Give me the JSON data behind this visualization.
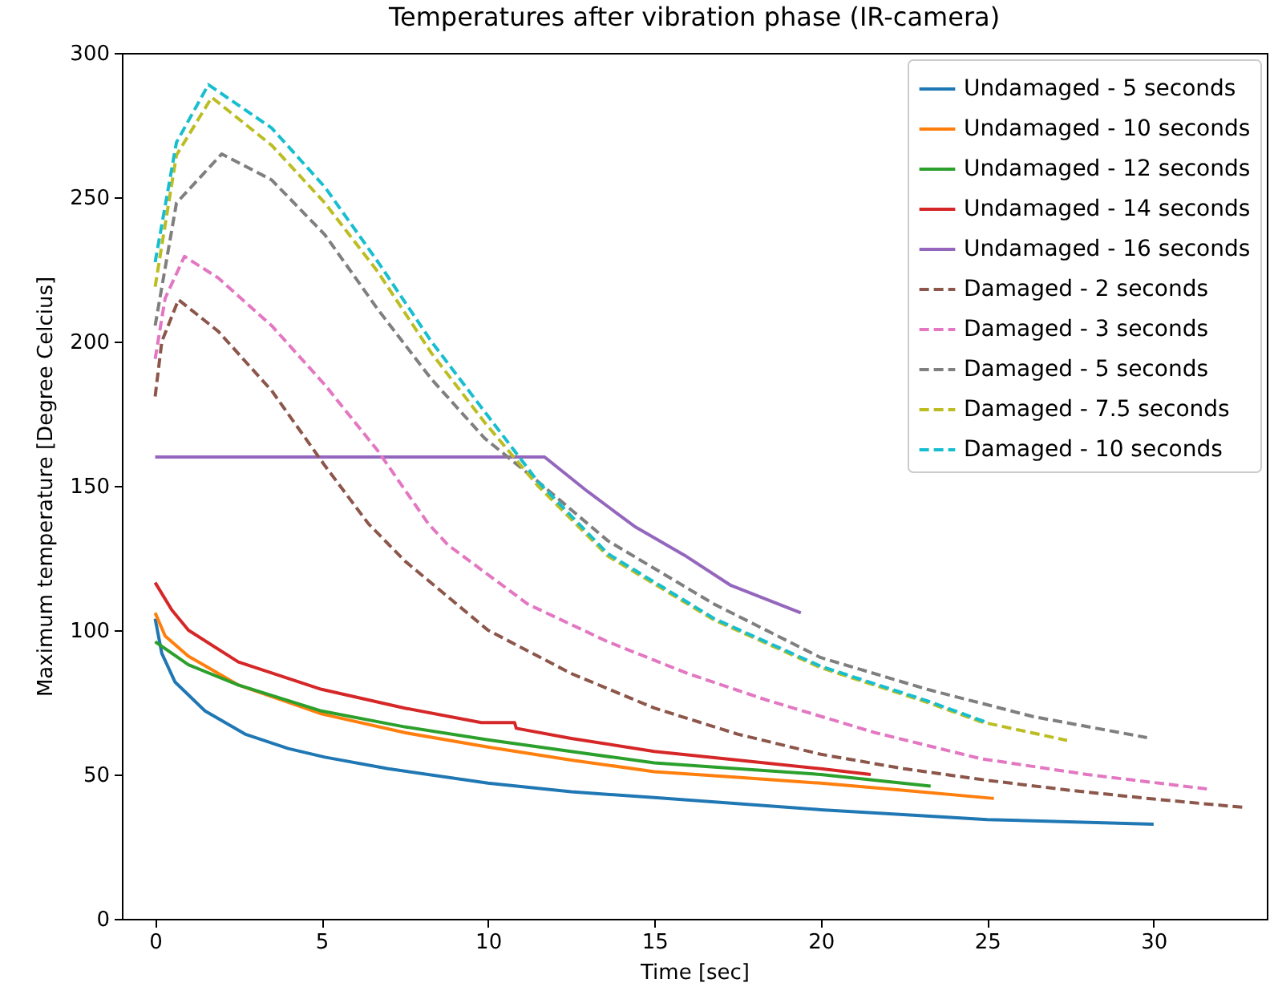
{
  "chart_data": {
    "type": "line",
    "title": "Temperatures after vibration phase (IR-camera)",
    "xlabel": "Time [sec]",
    "ylabel": "Maximum temperature [Degree Celcius]",
    "xlim": [
      -1,
      33.4
    ],
    "ylim": [
      0,
      300
    ],
    "xticks": [
      0,
      5,
      10,
      15,
      20,
      25,
      30
    ],
    "yticks": [
      0,
      50,
      100,
      150,
      200,
      250,
      300
    ],
    "grid": false,
    "legend": "top right",
    "series": [
      {
        "name": "Undamaged - 5 seconds",
        "color": "#1f77b4",
        "line_style": "solid",
        "x": [
          0,
          0.2,
          0.6,
          1.5,
          2.7,
          4,
          5.1,
          7,
          10,
          12.5,
          15,
          20,
          25,
          30
        ],
        "values": [
          104,
          92,
          82,
          72,
          64,
          59,
          56,
          52,
          47,
          44,
          42,
          37.8,
          34.4,
          32.8
        ]
      },
      {
        "name": "Undamaged - 10 seconds",
        "color": "#ff7f0e",
        "line_style": "solid",
        "x": [
          0,
          0.3,
          1,
          2.5,
          5,
          7.5,
          10,
          12.5,
          15,
          17.5,
          20,
          22.5,
          25.2
        ],
        "values": [
          106,
          98,
          91,
          81,
          71,
          64.5,
          59.5,
          55,
          51,
          49,
          47,
          44.5,
          41.7
        ]
      },
      {
        "name": "Undamaged - 12 seconds",
        "color": "#2ca02c",
        "line_style": "solid",
        "x": [
          0,
          1,
          2.5,
          5,
          7.5,
          10,
          12.5,
          15,
          17.5,
          20,
          23.3
        ],
        "values": [
          96,
          88,
          81,
          72,
          66.5,
          62,
          58,
          54,
          52,
          50,
          46
        ]
      },
      {
        "name": "Undamaged - 14 seconds",
        "color": "#d62728",
        "line_style": "solid",
        "x": [
          0,
          0.5,
          1,
          2.5,
          5,
          7.5,
          9.8,
          10.8,
          10.85,
          12.5,
          15,
          17.5,
          20,
          21.5
        ],
        "values": [
          116.5,
          107,
          100,
          89,
          79.5,
          73,
          68,
          68,
          66,
          62.5,
          58,
          55,
          52,
          50
        ]
      },
      {
        "name": "Undamaged - 16 seconds",
        "color": "#9467bd",
        "line_style": "solid",
        "x": [
          0,
          11.7,
          13,
          14.4,
          15.9,
          17.3,
          19.4
        ],
        "values": [
          160,
          160,
          148,
          136,
          126,
          115.5,
          106
        ]
      },
      {
        "name": "Damaged - 2 seconds",
        "color": "#8c564b",
        "line_style": "dashed",
        "x": [
          0,
          0.2,
          0.7,
          1.9,
          3.5,
          5.1,
          6.4,
          7.5,
          10,
          12.5,
          15,
          17.5,
          20,
          22.5,
          25,
          27.5,
          30,
          32.8
        ],
        "values": [
          181,
          200,
          214.5,
          203.5,
          183,
          157,
          137,
          124,
          100,
          85,
          73,
          64,
          57,
          52,
          48,
          44.5,
          41.5,
          38.5
        ]
      },
      {
        "name": "Damaged - 3 seconds",
        "color": "#e377c2",
        "line_style": "dashed",
        "x": [
          0,
          0.3,
          0.88,
          1.9,
          3.5,
          5.1,
          6.7,
          8.2,
          8.8,
          11.2,
          13.6,
          16,
          18.4,
          21.6,
          24.8,
          28,
          31.6
        ],
        "values": [
          194,
          215,
          229.5,
          222,
          205.5,
          185,
          162,
          137,
          129.5,
          109,
          96,
          85,
          75.7,
          64.6,
          55.5,
          50,
          45
        ]
      },
      {
        "name": "Damaged - 5 seconds",
        "color": "#7f7f7f",
        "line_style": "dashed",
        "x": [
          0,
          0.64,
          2,
          3.5,
          5.1,
          6.7,
          8.3,
          9.9,
          11.5,
          13.6,
          16.8,
          20,
          23.2,
          26.4,
          29.8
        ],
        "values": [
          205.5,
          248,
          265,
          256,
          237,
          211,
          187,
          166.5,
          151.5,
          131,
          109,
          90.5,
          79.5,
          70,
          62.8
        ]
      },
      {
        "name": "Damaged - 7.5 seconds",
        "color": "#bcbd22",
        "line_style": "dashed",
        "x": [
          0,
          0.64,
          1.7,
          3.5,
          5.1,
          6.7,
          8.3,
          9.9,
          11.5,
          13.6,
          16.8,
          20,
          23.2,
          24.8,
          27.4
        ],
        "values": [
          219,
          264.6,
          284.6,
          268,
          248,
          224,
          196,
          172,
          150,
          125.7,
          103.5,
          87,
          75,
          68.3,
          61.8
        ]
      },
      {
        "name": "Damaged - 10 seconds",
        "color": "#17becf",
        "line_style": "dashed",
        "x": [
          0,
          0.64,
          1.6,
          3.5,
          5.1,
          6.7,
          8.3,
          9.9,
          11.5,
          13.6,
          16.8,
          20,
          23.2,
          25
        ],
        "values": [
          227.5,
          269,
          289,
          274,
          253.5,
          227.5,
          200,
          175.7,
          151.5,
          126.5,
          104,
          87.5,
          75.5,
          68
        ]
      }
    ]
  }
}
